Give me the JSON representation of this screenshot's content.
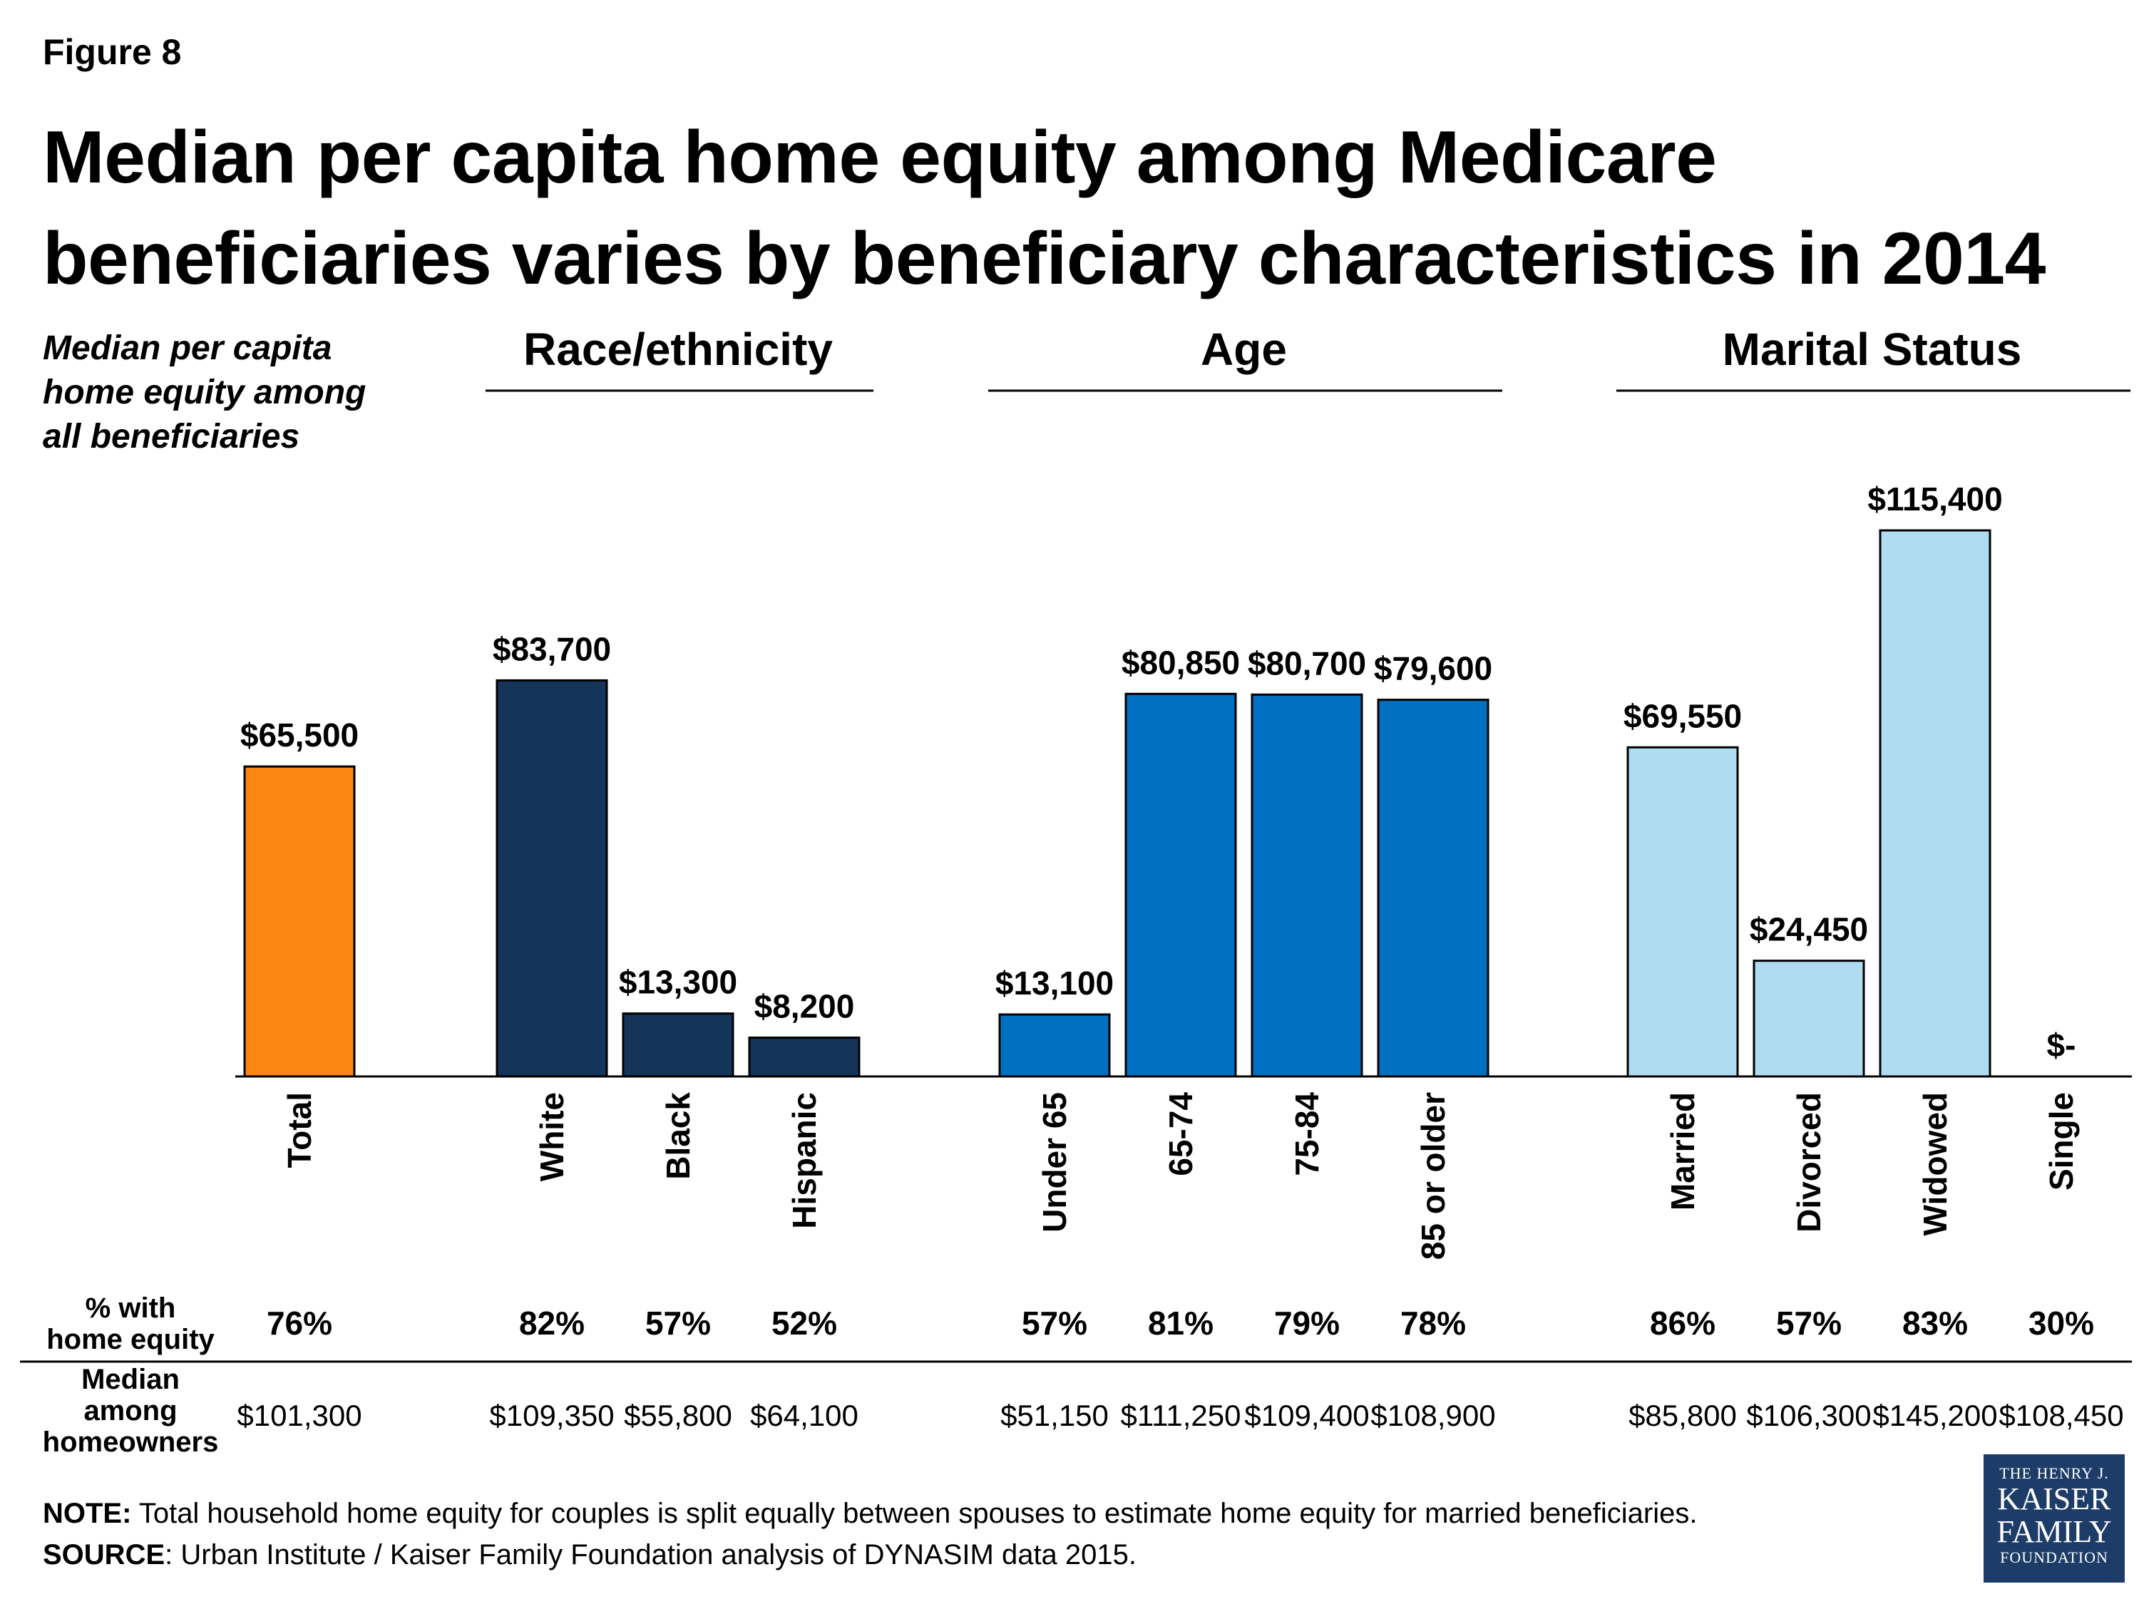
{
  "figure_label": "Figure 8",
  "title_line1": "Median per capita home equity among Medicare",
  "title_line2": "beneficiaries varies by beneficiary characteristics in 2014",
  "axis_note": [
    "Median per capita",
    "home equity among",
    "all beneficiaries"
  ],
  "colors": {
    "total": "#fb8611",
    "race": "#15345a",
    "age": "#0270c0",
    "marital": "#b0dcf2"
  },
  "chart_data": {
    "type": "bar",
    "title": "Median per capita home equity among Medicare beneficiaries varies by beneficiary characteristics in 2014",
    "ylabel": "Median per capita home equity among all beneficiaries",
    "ylim": [
      0,
      125000
    ],
    "grid": false,
    "groups": [
      {
        "name": "",
        "color_key": "total",
        "bars": [
          {
            "category": "Total",
            "value": 65500,
            "label": "$65,500",
            "pct": "76%",
            "median_owner": "$101,300"
          }
        ]
      },
      {
        "name": "Race/ethnicity",
        "color_key": "race",
        "bars": [
          {
            "category": "White",
            "value": 83700,
            "label": "$83,700",
            "pct": "82%",
            "median_owner": "$109,350"
          },
          {
            "category": "Black",
            "value": 13300,
            "label": "$13,300",
            "pct": "57%",
            "median_owner": "$55,800"
          },
          {
            "category": "Hispanic",
            "value": 8200,
            "label": "$8,200",
            "pct": "52%",
            "median_owner": "$64,100"
          }
        ]
      },
      {
        "name": "Age",
        "color_key": "age",
        "bars": [
          {
            "category": "Under 65",
            "value": 13100,
            "label": "$13,100",
            "pct": "57%",
            "median_owner": "$51,150"
          },
          {
            "category": "65-74",
            "value": 80850,
            "label": "$80,850",
            "pct": "81%",
            "median_owner": "$111,250"
          },
          {
            "category": "75-84",
            "value": 80700,
            "label": "$80,700",
            "pct": "79%",
            "median_owner": "$109,400"
          },
          {
            "category": "85 or older",
            "value": 79600,
            "label": "$79,600",
            "pct": "78%",
            "median_owner": "$108,900"
          }
        ]
      },
      {
        "name": "Marital Status",
        "color_key": "marital",
        "bars": [
          {
            "category": "Married",
            "value": 69550,
            "label": "$69,550",
            "pct": "86%",
            "median_owner": "$85,800"
          },
          {
            "category": "Divorced",
            "value": 24450,
            "label": "$24,450",
            "pct": "57%",
            "median_owner": "$106,300"
          },
          {
            "category": "Widowed",
            "value": 115400,
            "label": "$115,400",
            "pct": "83%",
            "median_owner": "$145,200"
          },
          {
            "category": "Single",
            "value": 0,
            "label": "$-",
            "pct": "30%",
            "median_owner": "$108,450"
          }
        ]
      }
    ],
    "row_labels": {
      "pct": [
        "% with",
        "home equity"
      ],
      "median": [
        "Median",
        "among",
        "homeowners"
      ]
    }
  },
  "notes": {
    "note_label": "NOTE:",
    "note_text": "  Total household home equity for couples is split equally between spouses  to estimate home equity for married beneficiaries.",
    "source_label": "SOURCE",
    "source_text": ": Urban Institute / Kaiser Family Foundation analysis of DYNASIM data 2015."
  },
  "logo": {
    "line1": "THE HENRY J.",
    "line2a": "KAISER",
    "line2b": "FAMILY",
    "line3": "FOUNDATION"
  }
}
